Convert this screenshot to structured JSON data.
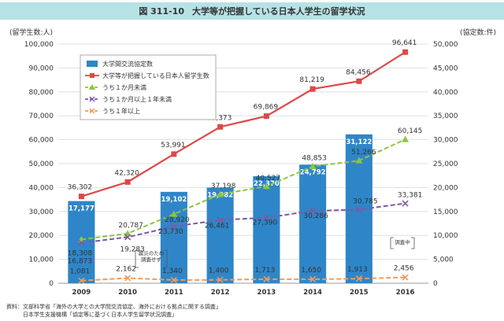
{
  "header": {
    "figure_number": "図 311-10",
    "title": "大学等が把握している日本人学生の留学状況"
  },
  "units": {
    "left": "(留学生数:人)",
    "right": "(協定数:件)"
  },
  "notes": {
    "disaster": [
      "震災のため",
      "調査せず"
    ],
    "in_progress": "調査中"
  },
  "source": {
    "line1": "資料：文部科学省「海外の大学との大学間交流協定、海外における拠点に関する調査」",
    "line2": "　　　日本学生支援機構「協定等に基づく日本人学生留学状況調査」"
  },
  "chart_data": {
    "type": "bar+line",
    "categories": [
      "2009",
      "2010",
      "2011",
      "2012",
      "2013",
      "2014",
      "2015",
      "2016"
    ],
    "y_left": {
      "min": 0,
      "max": 100000,
      "ticks": [
        "0",
        "10,000",
        "20,000",
        "30,000",
        "40,000",
        "50,000",
        "60,000",
        "70,000",
        "80,000",
        "90,000",
        "100,000"
      ]
    },
    "y_right": {
      "min": 0,
      "max": 50000,
      "ticks": [
        "0",
        "5,000",
        "10,000",
        "15,000",
        "20,000",
        "25,000",
        "30,000",
        "35,000",
        "40,000",
        "45,000",
        "50,000"
      ]
    },
    "grid": true,
    "legend_position": "top-left",
    "bars": {
      "name": "大学間交流協定数",
      "axis": "right",
      "color": "#2e86c8",
      "values": [
        17177,
        null,
        19102,
        19982,
        22370,
        24792,
        31122,
        null
      ],
      "labels": [
        "17,177",
        "",
        "19,102",
        "19,982",
        "22,370",
        "24,792",
        "31,122",
        ""
      ]
    },
    "series": [
      {
        "name": "大学等が把握している日本人留学生数",
        "axis": "left",
        "color": "#e04747",
        "style": "solid",
        "marker": "square",
        "values": [
          36302,
          42320,
          53991,
          65373,
          69869,
          81219,
          84456,
          96641
        ],
        "labels": [
          "36,302",
          "42,320",
          "53,991",
          "65,373",
          "69,869",
          "81,219",
          "84,456",
          "96,641"
        ]
      },
      {
        "name": "うち１か月未満",
        "axis": "left",
        "color": "#8cc63f",
        "style": "dashed",
        "marker": "triangle",
        "values": [
          18308,
          20787,
          28920,
          37198,
          40527,
          48853,
          51266,
          60145
        ],
        "labels": [
          "18,308",
          "20,787",
          "28,920",
          "37,198",
          "40,527",
          "48,853",
          "51,266",
          "60,145"
        ]
      },
      {
        "name": "うち１か月以上１年未満",
        "axis": "left",
        "color": "#7b5aa6",
        "style": "dashed",
        "marker": "x",
        "values": [
          16873,
          19283,
          23730,
          26461,
          27390,
          30286,
          30785,
          33381
        ],
        "labels": [
          "16,873",
          "19,283",
          "23,730",
          "26,461",
          "27,390",
          "30,286",
          "30,785",
          "33,381"
        ]
      },
      {
        "name": "うち１年以上",
        "axis": "left",
        "color": "#f39a5a",
        "style": "dashed",
        "marker": "x",
        "values": [
          1081,
          2162,
          1340,
          1400,
          1713,
          1650,
          1913,
          2456
        ],
        "labels": [
          "1,081",
          "2,162",
          "1,340",
          "1,400",
          "1,713",
          "1,650",
          "1,913",
          "2,456"
        ]
      }
    ]
  }
}
